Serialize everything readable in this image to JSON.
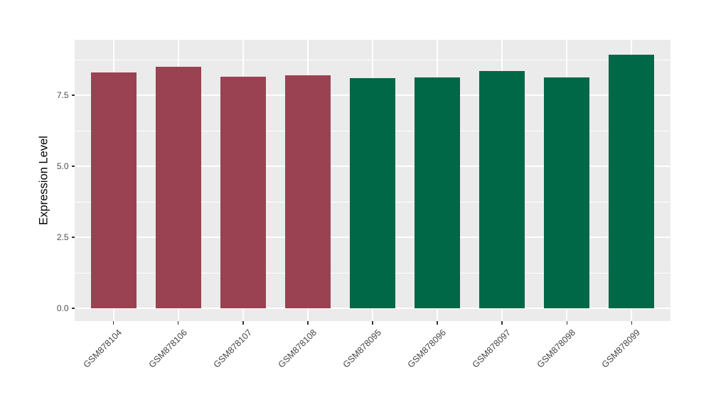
{
  "chart_data": {
    "type": "bar",
    "title": "",
    "xlabel": "",
    "ylabel": "Expression Level",
    "categories": [
      "GSM878104",
      "GSM878106",
      "GSM878107",
      "GSM878108",
      "GSM878095",
      "GSM878096",
      "GSM878097",
      "GSM878098",
      "GSM878099"
    ],
    "values": [
      8.31,
      8.51,
      8.16,
      8.21,
      8.11,
      8.13,
      8.36,
      8.13,
      8.93
    ],
    "bar_colors": [
      "#9A4252",
      "#9A4252",
      "#9A4252",
      "#9A4252",
      "#006747",
      "#006747",
      "#006747",
      "#006747",
      "#006747"
    ],
    "group_colors": {
      "left_group": "#9A4252",
      "right_group": "#006747"
    },
    "y_ticks": [
      0.0,
      2.5,
      5.0,
      7.5
    ],
    "y_tick_labels": [
      "0.0",
      "2.5",
      "5.0",
      "7.5"
    ],
    "y_minor_ticks": [
      1.25,
      3.75,
      6.25,
      8.75
    ],
    "ylim": [
      -0.45,
      9.45
    ],
    "bar_width_fraction": 0.7,
    "legend_position": "none",
    "grid": "white major+minor horizontal gridlines, white major vertical gridlines at bar centers",
    "theme": {
      "panel_background": "#EBEBEB",
      "grid_color": "#FFFFFF",
      "tick_mark_color": "#333333",
      "tick_label_color": "#4D4D4D",
      "axis_title_color": "#000000",
      "figure_background": "#FFFFFF"
    }
  }
}
